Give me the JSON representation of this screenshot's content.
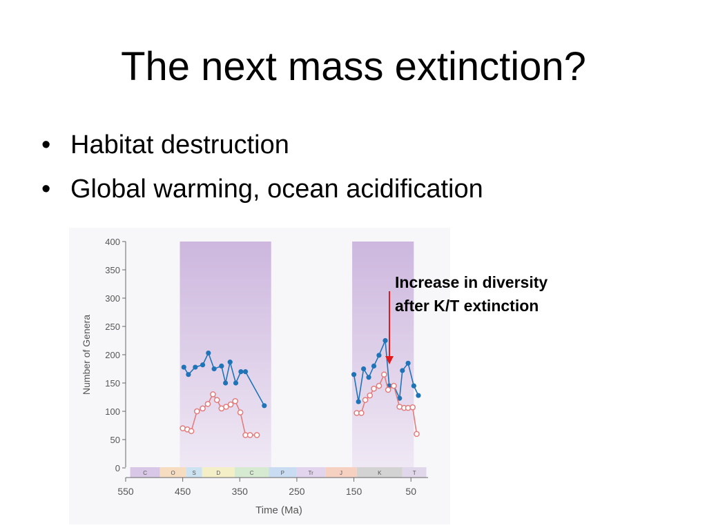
{
  "slide": {
    "title": "The next mass extinction?",
    "bullets": [
      "Habitat destruction",
      "Global warming, ocean acidification"
    ],
    "annotation": [
      "Increase in diversity",
      "after K/T extinction"
    ]
  },
  "chart_data": {
    "type": "line",
    "title": "",
    "xlabel": "Time (Ma)",
    "ylabel": "Number of Genera",
    "xlim": [
      550,
      20
    ],
    "ylim": [
      0,
      400
    ],
    "xticks": [
      550,
      450,
      350,
      250,
      150,
      50
    ],
    "yticks": [
      0,
      50,
      100,
      150,
      200,
      250,
      300,
      350,
      400
    ],
    "shaded_intervals": [
      [
        455,
        295
      ],
      [
        153,
        45
      ]
    ],
    "periods": [
      {
        "label": "C",
        "start": 542,
        "end": 490,
        "color": "#d8c7e6"
      },
      {
        "label": "O",
        "start": 490,
        "end": 444,
        "color": "#f6dcc1"
      },
      {
        "label": "S",
        "start": 444,
        "end": 416,
        "color": "#cde3f1"
      },
      {
        "label": "D",
        "start": 416,
        "end": 359,
        "color": "#f5efc8"
      },
      {
        "label": "C",
        "start": 359,
        "end": 299,
        "color": "#d6ead1"
      },
      {
        "label": "P",
        "start": 299,
        "end": 251,
        "color": "#c9dcf2"
      },
      {
        "label": "Tr",
        "start": 251,
        "end": 200,
        "color": "#e2d4ec"
      },
      {
        "label": "J",
        "start": 200,
        "end": 145,
        "color": "#f6d1c2"
      },
      {
        "label": "K",
        "start": 145,
        "end": 65,
        "color": "#d3d3d3"
      },
      {
        "label": "T",
        "start": 65,
        "end": 23,
        "color": "#e0d7ea"
      }
    ],
    "series": [
      {
        "marker": "filled",
        "color": "#1f73b7",
        "segments": [
          [
            [
              448,
              178
            ],
            [
              440,
              165
            ],
            [
              428,
              178
            ],
            [
              415,
              182
            ],
            [
              405,
              203
            ],
            [
              395,
              175
            ],
            [
              382,
              180
            ],
            [
              375,
              150
            ],
            [
              367,
              187
            ],
            [
              357,
              150
            ],
            [
              348,
              170
            ],
            [
              340,
              170
            ],
            [
              307,
              110
            ]
          ],
          [
            [
              150,
              165
            ],
            [
              142,
              117
            ],
            [
              133,
              175
            ],
            [
              124,
              160
            ],
            [
              115,
              180
            ],
            [
              106,
              199
            ],
            [
              95,
              225
            ],
            [
              88,
              145
            ],
            [
              80,
              145
            ],
            [
              70,
              123
            ],
            [
              65,
              172
            ],
            [
              55,
              185
            ],
            [
              45,
              145
            ],
            [
              37,
              128
            ]
          ]
        ]
      },
      {
        "marker": "open",
        "color": "#e37c7c",
        "segments": [
          [
            [
              450,
              70
            ],
            [
              442,
              68
            ],
            [
              435,
              65
            ],
            [
              425,
              100
            ],
            [
              415,
              105
            ],
            [
              406,
              113
            ],
            [
              397,
              130
            ],
            [
              390,
              120
            ],
            [
              382,
              105
            ],
            [
              374,
              108
            ],
            [
              366,
              112
            ],
            [
              358,
              118
            ],
            [
              349,
              98
            ],
            [
              340,
              58
            ],
            [
              332,
              58
            ],
            [
              320,
              58
            ]
          ],
          [
            [
              145,
              97
            ],
            [
              137,
              97
            ],
            [
              130,
              120
            ],
            [
              122,
              128
            ],
            [
              115,
              140
            ],
            [
              106,
              145
            ],
            [
              97,
              165
            ],
            [
              90,
              138
            ],
            [
              80,
              145
            ],
            [
              70,
              108
            ],
            [
              62,
              106
            ],
            [
              55,
              106
            ],
            [
              47,
              107
            ],
            [
              40,
              60
            ]
          ]
        ]
      }
    ]
  }
}
